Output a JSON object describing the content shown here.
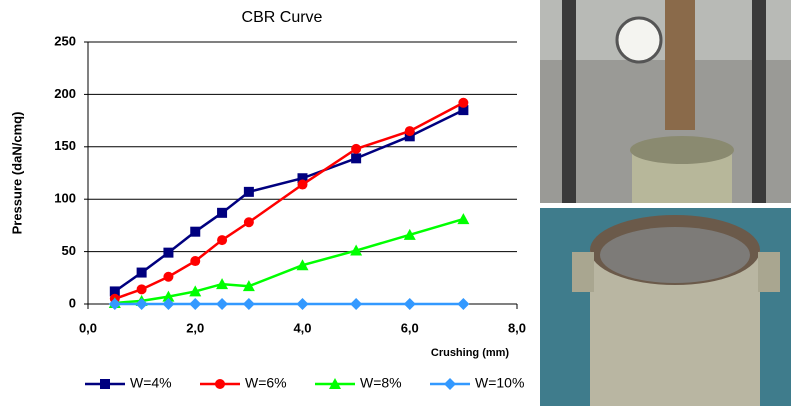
{
  "chart_data": {
    "type": "line",
    "title": "CBR Curve",
    "x_label": "Crushing (mm)",
    "y_label": "Pressure (daN/cmq)",
    "x": [
      0.5,
      1,
      1.5,
      2,
      2.5,
      3,
      4,
      5,
      6,
      7
    ],
    "series": [
      {
        "name": "W=4%",
        "color": "#00007f",
        "marker": "square",
        "values": [
          12,
          30,
          49,
          69,
          87,
          107,
          120,
          139,
          160,
          185
        ]
      },
      {
        "name": "W=6%",
        "color": "#ff0000",
        "marker": "circle",
        "values": [
          5,
          14,
          26,
          41,
          61,
          78,
          114,
          148,
          165,
          192
        ]
      },
      {
        "name": "W=8%",
        "color": "#00ff00",
        "marker": "triangle",
        "values": [
          1,
          3,
          7,
          12,
          19,
          17,
          37,
          51,
          66,
          81
        ]
      },
      {
        "name": "W=10%",
        "color": "#3399ff",
        "marker": "diamond",
        "values": [
          0,
          0,
          0,
          0,
          0,
          0,
          0,
          0,
          0,
          0
        ]
      }
    ],
    "xlim": [
      0,
      8
    ],
    "xticks": [
      {
        "value": 0,
        "label": "0,0"
      },
      {
        "value": 2,
        "label": "2,0"
      },
      {
        "value": 4,
        "label": "4,0"
      },
      {
        "value": 6,
        "label": "6,0"
      },
      {
        "value": 8,
        "label": "8,0"
      }
    ],
    "ylim": [
      0,
      250
    ],
    "yticks": [
      0,
      50,
      100,
      150,
      200,
      250
    ],
    "grid": true,
    "legend": "bottom"
  }
}
